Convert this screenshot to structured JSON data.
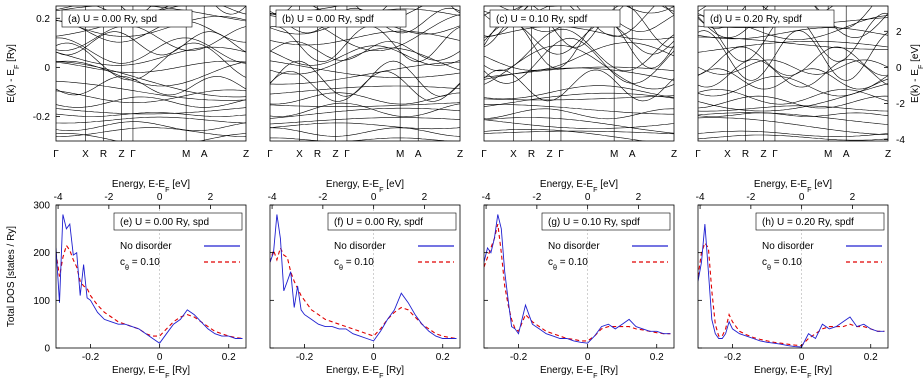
{
  "chart_data": {
    "type": "line",
    "band_panels": [
      {
        "label": "(a) U = 0.00 Ry, spd",
        "U": "0.00",
        "basis": "spd"
      },
      {
        "label": "(b) U = 0.00 Ry, spdf",
        "U": "0.00",
        "basis": "spdf"
      },
      {
        "label": "(c) U = 0.10 Ry, spdf",
        "U": "0.10",
        "basis": "spdf"
      },
      {
        "label": "(d) U = 0.20 Ry, spdf",
        "U": "0.20",
        "basis": "spdf"
      }
    ],
    "band_kpath": [
      "Γ",
      "X",
      "R",
      "Z",
      "Γ",
      "M",
      "A",
      "Z"
    ],
    "band_ylabel_left": "E(k) - E_F [Ry]",
    "band_ylabel_right": "E(k) - E_F [eV]",
    "band_ylim_ry": [
      -0.3,
      0.25
    ],
    "band_yticks_ry": [
      "-0.2",
      "0",
      "0.2"
    ],
    "band_yticks_ev": [
      "-4",
      "-2",
      "0",
      "2"
    ],
    "dos_panels": [
      {
        "label": "(e) U = 0.00 Ry, spd",
        "U": "0.00",
        "basis": "spd",
        "x": [
          -0.3,
          -0.29,
          -0.28,
          -0.27,
          -0.26,
          -0.25,
          -0.24,
          -0.23,
          -0.22,
          -0.21,
          -0.2,
          -0.18,
          -0.16,
          -0.14,
          -0.12,
          -0.1,
          -0.08,
          -0.06,
          -0.04,
          -0.02,
          0.0,
          0.02,
          0.04,
          0.06,
          0.08,
          0.1,
          0.12,
          0.14,
          0.16,
          0.18,
          0.2,
          0.22,
          0.24
        ],
        "no_disorder": [
          210,
          95,
          280,
          250,
          260,
          195,
          200,
          110,
          175,
          105,
          100,
          75,
          60,
          55,
          50,
          50,
          45,
          40,
          30,
          20,
          10,
          30,
          50,
          60,
          80,
          70,
          55,
          40,
          30,
          25,
          25,
          20,
          20
        ],
        "disorder": [
          200,
          150,
          190,
          215,
          205,
          185,
          170,
          140,
          130,
          125,
          110,
          90,
          75,
          65,
          55,
          50,
          45,
          40,
          30,
          25,
          25,
          40,
          55,
          65,
          70,
          65,
          55,
          45,
          35,
          30,
          25,
          22,
          20
        ]
      },
      {
        "label": "(f) U = 0.00 Ry, spdf",
        "U": "0.00",
        "basis": "spdf",
        "x": [
          -0.3,
          -0.29,
          -0.28,
          -0.27,
          -0.26,
          -0.25,
          -0.24,
          -0.23,
          -0.22,
          -0.21,
          -0.2,
          -0.18,
          -0.16,
          -0.14,
          -0.12,
          -0.1,
          -0.08,
          -0.06,
          -0.04,
          -0.02,
          0.0,
          0.02,
          0.04,
          0.06,
          0.08,
          0.1,
          0.12,
          0.14,
          0.16,
          0.18,
          0.2,
          0.22,
          0.24
        ],
        "no_disorder": [
          180,
          200,
          280,
          230,
          120,
          140,
          160,
          85,
          130,
          80,
          70,
          60,
          50,
          45,
          45,
          40,
          40,
          30,
          25,
          20,
          15,
          35,
          60,
          80,
          115,
          95,
          70,
          50,
          35,
          25,
          20,
          20,
          20
        ],
        "disorder": [
          180,
          205,
          185,
          210,
          195,
          190,
          160,
          140,
          125,
          110,
          100,
          80,
          70,
          60,
          55,
          50,
          45,
          40,
          35,
          30,
          25,
          40,
          60,
          75,
          85,
          80,
          65,
          50,
          40,
          30,
          25,
          22,
          20
        ]
      },
      {
        "label": "(g) U = 0.10 Ry, spdf",
        "U": "0.10",
        "basis": "spdf",
        "x": [
          -0.3,
          -0.29,
          -0.28,
          -0.27,
          -0.26,
          -0.25,
          -0.24,
          -0.23,
          -0.22,
          -0.21,
          -0.2,
          -0.18,
          -0.16,
          -0.14,
          -0.12,
          -0.1,
          -0.08,
          -0.06,
          -0.04,
          -0.02,
          0.0,
          0.02,
          0.04,
          0.06,
          0.08,
          0.1,
          0.12,
          0.14,
          0.16,
          0.18,
          0.2,
          0.22,
          0.24
        ],
        "no_disorder": [
          180,
          210,
          200,
          230,
          280,
          250,
          160,
          100,
          45,
          40,
          30,
          90,
          50,
          40,
          30,
          25,
          20,
          20,
          15,
          12,
          10,
          25,
          45,
          50,
          40,
          50,
          60,
          45,
          40,
          35,
          35,
          30,
          30
        ],
        "disorder": [
          170,
          190,
          210,
          230,
          260,
          200,
          130,
          90,
          60,
          40,
          35,
          70,
          55,
          45,
          35,
          30,
          25,
          20,
          18,
          15,
          15,
          25,
          40,
          45,
          45,
          45,
          45,
          40,
          38,
          35,
          32,
          30,
          30
        ]
      },
      {
        "label": "(h) U = 0.20 Ry, spdf",
        "U": "0.20",
        "basis": "spdf",
        "x": [
          -0.3,
          -0.29,
          -0.28,
          -0.27,
          -0.26,
          -0.25,
          -0.24,
          -0.23,
          -0.22,
          -0.21,
          -0.2,
          -0.18,
          -0.16,
          -0.14,
          -0.12,
          -0.1,
          -0.08,
          -0.06,
          -0.04,
          -0.02,
          0.0,
          0.02,
          0.04,
          0.06,
          0.08,
          0.1,
          0.12,
          0.14,
          0.16,
          0.18,
          0.2,
          0.22,
          0.24
        ],
        "no_disorder": [
          140,
          180,
          260,
          160,
          60,
          30,
          20,
          20,
          30,
          55,
          40,
          30,
          25,
          20,
          15,
          12,
          10,
          8,
          5,
          3,
          2,
          30,
          20,
          50,
          40,
          45,
          55,
          65,
          45,
          50,
          40,
          35,
          35
        ],
        "disorder": [
          150,
          200,
          220,
          210,
          120,
          50,
          25,
          25,
          40,
          70,
          55,
          35,
          28,
          22,
          18,
          15,
          12,
          10,
          8,
          6,
          5,
          20,
          30,
          40,
          45,
          45,
          45,
          50,
          45,
          45,
          40,
          35,
          35
        ]
      }
    ],
    "dos_ylabel": "Total DOS [states / Ry]",
    "dos_ylim": [
      0,
      300
    ],
    "dos_yticks": [
      "0",
      "100",
      "200",
      "300"
    ],
    "xlabel_ry": "Energy, E-E_F [Ry]",
    "xlabel_ev": "Energy, E-E_F [eV]",
    "xlim_ry": [
      -0.3,
      0.25
    ],
    "xticks_ry": [
      "-0.2",
      "0",
      "0.2"
    ],
    "xticks_ev": [
      "-4",
      "-2",
      "0",
      "2"
    ],
    "legend": [
      "No disorder",
      "c_θ = 0.10"
    ],
    "colors": {
      "no_disorder": "#2020d0",
      "disorder": "#e00000",
      "bands": "#000000",
      "zero_line": "#b0b0b0"
    }
  }
}
